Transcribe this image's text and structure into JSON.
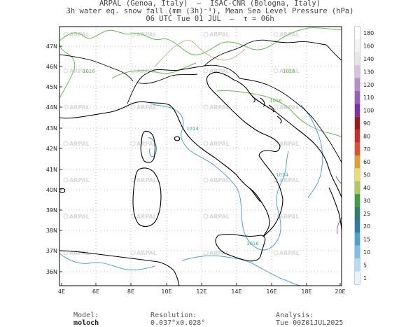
{
  "header": {
    "line1": "ARPAL (Genoa, Italy)  —  ISAC-CNR (Bologna, Italy)",
    "line2": "3h water eq. snow fall (mm (3h)⁻¹), Mean Sea Level Pressure (hPa)",
    "line3": "06 UTC Tue 01 JUL  —  τ = 06h"
  },
  "map": {
    "lat_labels": [
      "47N",
      "46N",
      "45N",
      "44N",
      "43N",
      "42N",
      "41N",
      "40N",
      "39N",
      "38N",
      "37N",
      "36N"
    ],
    "lon_labels": [
      "4E",
      "6E",
      "8E",
      "10E",
      "12E",
      "14E",
      "16E",
      "18E",
      "20E"
    ],
    "watermark": "ARPAL",
    "isobar_labels": [
      "1016",
      "1016",
      "1016",
      "1014",
      "1014",
      "1016"
    ],
    "colors": {
      "coast": "#000000",
      "isobar_high": "#5cc24a",
      "isobar_mid": "#d2b48c",
      "isobar_low": "#4aa6d6",
      "grid": "#999999"
    }
  },
  "colorbar": {
    "labels": [
      "180",
      "160",
      "140",
      "130",
      "120",
      "110",
      "100",
      "90",
      "80",
      "70",
      "60",
      "50",
      "40",
      "30",
      "25",
      "20",
      "15",
      "10",
      "5",
      "1"
    ],
    "colors": [
      "#ffffff",
      "#f2f2f2",
      "#e6e6e6",
      "#d4c2df",
      "#b48ec8",
      "#9a5fb6",
      "#7e2fa0",
      "#9e1a1a",
      "#c62d2d",
      "#e05030",
      "#e0a030",
      "#e8e06a",
      "#b0c860",
      "#3f9c3f",
      "#2e7f6a",
      "#2f7ba8",
      "#4aa0d0",
      "#7ec0e8",
      "#b7dcf2",
      "#e8f4fb"
    ]
  },
  "footer": {
    "model_label": "Model:",
    "model_value": "moloch",
    "resolution_label": "Resolution:",
    "resolution_value": "0.037°x0.028°",
    "analysis_label": "Analysis:",
    "analysis_value": "Tue 00Z01JUL2025"
  }
}
